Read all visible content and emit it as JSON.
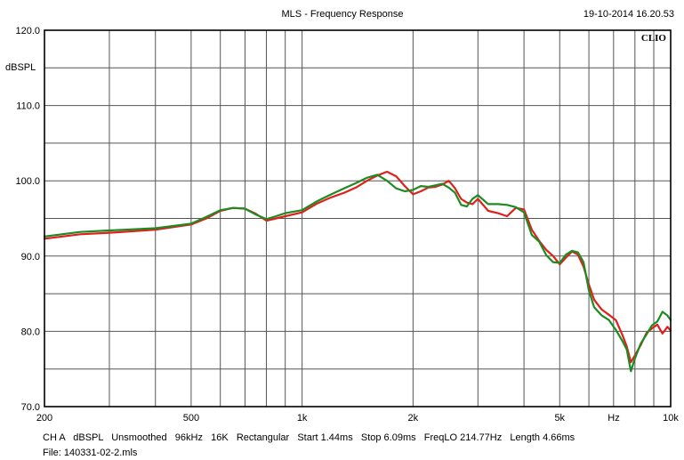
{
  "header": {
    "title": "MLS - Frequency Response",
    "timestamp": "19-10-2014 16.20.53",
    "brand": "CLIO"
  },
  "footer": {
    "line1": "CH A   dBSPL   Unsmoothed   96kHz   16K   Rectangular   Start 1.44ms   Stop 6.09ms   FreqLO 214.77Hz   Length 4.66ms",
    "line2": "File: 140331-02-2.mls"
  },
  "colors": {
    "grid": "#555555",
    "frame": "#000000",
    "series_red": "#e0201c",
    "series_green": "#1e8a22"
  },
  "chart_data": {
    "type": "line",
    "title": "MLS - Frequency Response",
    "ylabel": "dBSPL",
    "xlabel": "Hz",
    "x_scale": "log",
    "xlim": [
      200,
      10000
    ],
    "ylim": [
      70,
      120
    ],
    "grid": true,
    "y_ticks": [
      {
        "value": 120,
        "label": "120.0"
      },
      {
        "value": 110,
        "label": "110.0"
      },
      {
        "value": 100,
        "label": "100.0"
      },
      {
        "value": 90,
        "label": "90.0"
      },
      {
        "value": 80,
        "label": "80.0"
      },
      {
        "value": 70,
        "label": "70.0"
      }
    ],
    "x_ticks": [
      {
        "value": 200,
        "label": "200"
      },
      {
        "value": 500,
        "label": "500"
      },
      {
        "value": 1000,
        "label": "1k"
      },
      {
        "value": 2000,
        "label": "2k"
      },
      {
        "value": 5000,
        "label": "5k"
      },
      {
        "value": 10000,
        "label": "10k"
      }
    ],
    "series": [
      {
        "color": "#e0201c",
        "x": [
          200,
          250,
          300,
          400,
          500,
          550,
          600,
          650,
          700,
          750,
          800,
          850,
          900,
          1000,
          1100,
          1200,
          1300,
          1400,
          1500,
          1600,
          1700,
          1800,
          1900,
          2000,
          2100,
          2200,
          2300,
          2400,
          2500,
          2600,
          2700,
          2800,
          2900,
          3000,
          3200,
          3400,
          3600,
          3800,
          4000,
          4200,
          4400,
          4600,
          4800,
          5000,
          5200,
          5400,
          5600,
          5800,
          6000,
          6200,
          6500,
          6800,
          7100,
          7400,
          7600,
          7800,
          8000,
          8300,
          8600,
          8900,
          9200,
          9500,
          9800,
          10000
        ],
        "y": [
          92.3,
          92.9,
          93.1,
          93.5,
          94.2,
          95.0,
          96.0,
          96.4,
          96.3,
          95.6,
          94.7,
          95.0,
          95.3,
          95.8,
          97.0,
          97.8,
          98.4,
          99.1,
          100.0,
          100.7,
          101.2,
          100.6,
          99.3,
          98.2,
          98.6,
          99.1,
          99.2,
          99.5,
          100.0,
          99.0,
          97.6,
          97.1,
          96.9,
          97.6,
          96.0,
          95.7,
          95.3,
          96.4,
          96.2,
          93.5,
          92.0,
          90.8,
          90.0,
          88.9,
          89.8,
          90.6,
          90.2,
          88.6,
          86.2,
          84.2,
          82.9,
          82.2,
          81.5,
          79.5,
          78.0,
          75.9,
          76.8,
          78.2,
          79.8,
          80.4,
          80.9,
          79.7,
          80.6,
          80.1
        ]
      },
      {
        "color": "#1e8a22",
        "x": [
          200,
          250,
          300,
          400,
          500,
          550,
          600,
          650,
          700,
          750,
          800,
          850,
          900,
          1000,
          1100,
          1200,
          1300,
          1400,
          1500,
          1600,
          1700,
          1800,
          1900,
          2000,
          2100,
          2200,
          2300,
          2400,
          2500,
          2600,
          2700,
          2800,
          2900,
          3000,
          3200,
          3400,
          3600,
          3800,
          4000,
          4200,
          4400,
          4600,
          4800,
          5000,
          5200,
          5400,
          5600,
          5800,
          6000,
          6200,
          6500,
          6800,
          7100,
          7400,
          7600,
          7800,
          8000,
          8300,
          8600,
          8900,
          9200,
          9500,
          9800,
          10000
        ],
        "y": [
          92.6,
          93.2,
          93.4,
          93.7,
          94.3,
          95.2,
          96.1,
          96.4,
          96.3,
          95.5,
          94.9,
          95.3,
          95.7,
          96.1,
          97.3,
          98.2,
          99.0,
          99.7,
          100.4,
          100.8,
          100.0,
          99.0,
          98.6,
          98.8,
          99.3,
          99.2,
          99.4,
          99.6,
          99.1,
          98.4,
          96.8,
          96.6,
          97.6,
          98.1,
          96.9,
          96.9,
          96.8,
          96.5,
          95.8,
          92.8,
          91.9,
          90.1,
          89.2,
          89.1,
          90.2,
          90.7,
          90.5,
          89.2,
          85.4,
          83.2,
          82.1,
          81.5,
          80.2,
          78.7,
          77.6,
          74.7,
          76.4,
          78.4,
          79.6,
          80.8,
          81.3,
          82.6,
          82.1,
          81.5
        ]
      }
    ]
  }
}
